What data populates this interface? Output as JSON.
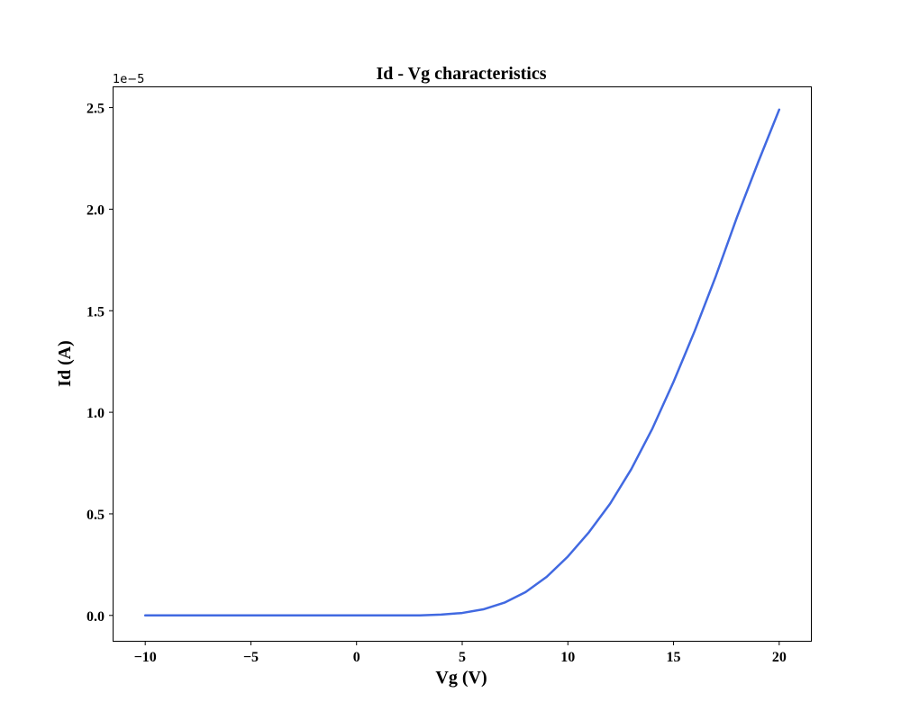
{
  "chart_data": {
    "type": "line",
    "title": "Id - Vg characteristics",
    "xlabel": "Vg (V)",
    "ylabel": "Id (A)",
    "y_offset_label": "1e−5",
    "xlim": [
      -11.5,
      21.5
    ],
    "ylim": [
      -0.125,
      2.6
    ],
    "x_ticks": [
      -10,
      -5,
      0,
      5,
      10,
      15,
      20
    ],
    "x_tick_labels": [
      "−10",
      "−5",
      "0",
      "5",
      "10",
      "15",
      "20"
    ],
    "y_ticks": [
      0.0,
      0.5,
      1.0,
      1.5,
      2.0,
      2.5
    ],
    "y_tick_labels": [
      "0.0",
      "0.5",
      "1.0",
      "1.5",
      "2.0",
      "2.5"
    ],
    "grid": false,
    "series": [
      {
        "color": "#4169e1",
        "x": [
          -10,
          -5,
          0,
          3,
          4,
          5,
          6,
          7,
          8,
          9,
          10,
          11,
          12,
          13,
          14,
          15,
          16,
          17,
          18,
          19,
          20
        ],
        "y": [
          0.0,
          0.0,
          0.0,
          0.0,
          0.004,
          0.012,
          0.03,
          0.063,
          0.115,
          0.19,
          0.29,
          0.41,
          0.55,
          0.72,
          0.92,
          1.15,
          1.4,
          1.67,
          1.96,
          2.23,
          2.49
        ]
      }
    ]
  }
}
